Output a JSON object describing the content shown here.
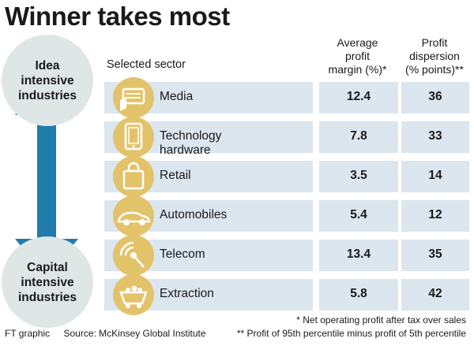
{
  "title": "Winner takes most",
  "axis": {
    "top_lines": [
      "Idea",
      "intensive",
      "industries"
    ],
    "bottom_lines": [
      "Capital",
      "intensive",
      "industries"
    ]
  },
  "headers": {
    "sector": "Selected sector",
    "margin_lines": [
      "Average",
      "profit",
      "margin (%)*"
    ],
    "dispersion_lines": [
      "Profit",
      "dispersion",
      "(% points)**"
    ]
  },
  "chart_data": {
    "type": "table",
    "columns": [
      "Selected sector",
      "Average profit margin (%)*",
      "Profit dispersion (% points)**"
    ],
    "rows": [
      {
        "sector": "Media",
        "icon": "newspaper-icon",
        "margin": "12.4",
        "dispersion": "36"
      },
      {
        "sector": "Technology hardware",
        "icon": "tablet-icon",
        "margin": "7.8",
        "dispersion": "33"
      },
      {
        "sector": "Retail",
        "icon": "shopping-bag-icon",
        "margin": "3.5",
        "dispersion": "14"
      },
      {
        "sector": "Automobiles",
        "icon": "car-icon",
        "margin": "5.4",
        "dispersion": "12"
      },
      {
        "sector": "Telecom",
        "icon": "satellite-dish-icon",
        "margin": "13.4",
        "dispersion": "35"
      },
      {
        "sector": "Extraction",
        "icon": "mine-cart-icon",
        "margin": "5.8",
        "dispersion": "42"
      }
    ]
  },
  "footnotes": {
    "margin": "* Net operating profit after tax over sales",
    "dispersion": "** Profit of 95th percentile minus profit of 5th percentile"
  },
  "credit": "FT graphic",
  "source": "Source: McKinsey Global Institute",
  "colors": {
    "row_fill": "#dbe6ef",
    "circle_fill": "#dfe6e6",
    "arrow": "#1f7cab",
    "icon_fill": "#e3c36a",
    "icon_line": "#ffffff"
  }
}
